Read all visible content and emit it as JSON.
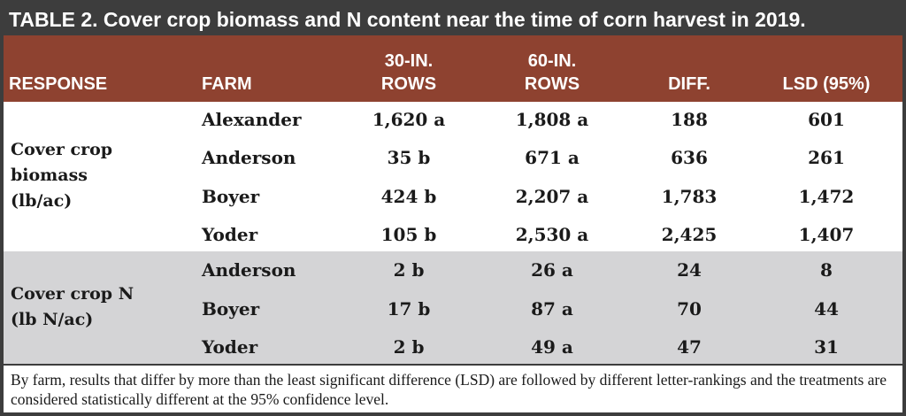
{
  "title": "TABLE 2. Cover crop biomass and N content near the time of corn harvest in 2019.",
  "headers": {
    "response": "RESPONSE",
    "farm": "FARM",
    "rows30_line1": "30-IN.",
    "rows30_line2": "ROWS",
    "rows60_line1": "60-IN.",
    "rows60_line2": "ROWS",
    "diff": "DIFF.",
    "lsd": "LSD (95%)"
  },
  "groups": [
    {
      "response_lines": [
        "Cover crop",
        "biomass",
        "(lb/ac)"
      ],
      "rows": [
        {
          "farm": "Alexander",
          "rows30": "1,620 a",
          "rows60": "1,808 a",
          "diff": "188",
          "lsd": "601"
        },
        {
          "farm": "Anderson",
          "rows30": "35 b",
          "rows60": "671 a",
          "diff": "636",
          "lsd": "261"
        },
        {
          "farm": "Boyer",
          "rows30": "424 b",
          "rows60": "2,207 a",
          "diff": "1,783",
          "lsd": "1,472"
        },
        {
          "farm": "Yoder",
          "rows30": "105 b",
          "rows60": "2,530 a",
          "diff": "2,425",
          "lsd": "1,407"
        }
      ]
    },
    {
      "response_lines": [
        "Cover crop N",
        "(lb N/ac)"
      ],
      "rows": [
        {
          "farm": "Anderson",
          "rows30": "2 b",
          "rows60": "26 a",
          "diff": "24",
          "lsd": "8"
        },
        {
          "farm": "Boyer",
          "rows30": "17 b",
          "rows60": "87 a",
          "diff": "70",
          "lsd": "44"
        },
        {
          "farm": "Yoder",
          "rows30": "2 b",
          "rows60": "49 a",
          "diff": "47",
          "lsd": "31"
        }
      ]
    }
  ],
  "footnote": "By farm, results that differ by more than the least significant difference (LSD) are followed by different letter-rankings and the treatments are considered statistically different at the 95% confidence level.",
  "colors": {
    "title_bg": "#3d3d3d",
    "header_bg": "#8e4230",
    "n_band_bg": "#d4d4d6",
    "text": "#1a1a1a"
  }
}
